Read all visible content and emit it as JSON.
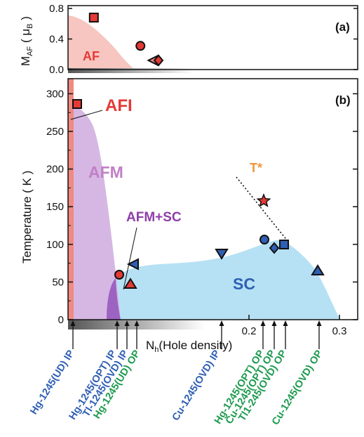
{
  "chart_data": [
    {
      "panel": "(a)",
      "type": "scatter",
      "ylabel": "M_AF (μB)",
      "ylim": [
        0,
        0.8
      ],
      "yticks": [
        0.0,
        0.4,
        0.8
      ],
      "regions": [
        {
          "label": "AF",
          "color": "#f08a82"
        }
      ],
      "points": [
        {
          "x": 0.02,
          "y": 0.68,
          "marker": "square"
        },
        {
          "x": 0.08,
          "y": 0.31,
          "marker": "circle"
        },
        {
          "x": 0.095,
          "y": 0.12,
          "marker": "triangle-left"
        },
        {
          "x": 0.1,
          "y": 0.12,
          "marker": "diamond"
        }
      ]
    },
    {
      "panel": "(b)",
      "type": "scatter",
      "xlabel": "Nh(Hole density)",
      "ylabel": "Temperature ( K )",
      "xlim": [
        0,
        0.32
      ],
      "ylim": [
        0,
        320
      ],
      "xticks": [
        "0.2",
        "0.3"
      ],
      "yticks": [
        0,
        50,
        100,
        150,
        200,
        250,
        300
      ],
      "regions": [
        {
          "label": "AFI",
          "color": "#f08a82"
        },
        {
          "label": "AFM",
          "color": "#caa6d9"
        },
        {
          "label": "AFM+SC",
          "color": "#8e50b8"
        },
        {
          "label": "SC",
          "color": "#a9dcf2"
        }
      ],
      "annotations": [
        "T*"
      ],
      "points": [
        {
          "x": 0.005,
          "y": 290,
          "marker": "square",
          "color": "#e53935"
        },
        {
          "x": 0.065,
          "y": 60,
          "marker": "circle",
          "color": "#e53935"
        },
        {
          "x": 0.085,
          "y": 73,
          "marker": "triangle-left",
          "color": "#2f5fb3"
        },
        {
          "x": 0.082,
          "y": 47,
          "marker": "triangle-up",
          "color": "#e53935"
        },
        {
          "x": 0.175,
          "y": 90,
          "marker": "triangle-down",
          "color": "#2f5fb3"
        },
        {
          "x": 0.222,
          "y": 108,
          "marker": "circle",
          "color": "#2f5fb3"
        },
        {
          "x": 0.232,
          "y": 97,
          "marker": "diamond",
          "color": "#2f5fb3"
        },
        {
          "x": 0.24,
          "y": 100,
          "marker": "square",
          "color": "#2f5fb3"
        },
        {
          "x": 0.287,
          "y": 65,
          "marker": "triangle-up",
          "color": "#2f5fb3"
        },
        {
          "x": 0.22,
          "y": 160,
          "marker": "star",
          "color": "#e53935"
        }
      ],
      "arrows": [
        {
          "x": 0.005,
          "label": "Hg-1245(UD) IP",
          "color": "#2f5fb3"
        },
        {
          "x": 0.065,
          "label": "Hg-1245(OPT) IP",
          "color": "#2f5fb3"
        },
        {
          "x": 0.077,
          "label": "Tl-1245(OVD) IP",
          "color": "#2f5fb3"
        },
        {
          "x": 0.091,
          "label": "Hg-1245(UD) OP",
          "color": "#1d9a4f"
        },
        {
          "x": 0.175,
          "label": "Cu-1245(OVD) IP",
          "color": "#2f5fb3"
        },
        {
          "x": 0.222,
          "label": "Hg-1245(OPT) OP",
          "color": "#1d9a4f"
        },
        {
          "x": 0.232,
          "label": "Cu-1245(OPT) OP",
          "color": "#1d9a4f"
        },
        {
          "x": 0.246,
          "label": "Tl1-245(OVD) OP",
          "color": "#1d9a4f"
        },
        {
          "x": 0.289,
          "label": "Cu-1245(OVD) OP",
          "color": "#1d9a4f"
        }
      ]
    }
  ],
  "labels": {
    "panel_a": "(a)",
    "panel_b": "(b)",
    "ylabel_a_main": "M",
    "ylabel_a_sub": "AF",
    "ylabel_a_open": " ( μ",
    "ylabel_a_sub2": "B",
    "ylabel_a_close": " )",
    "ylabel_b": "Temperature ( K )",
    "xlabel_main": "N",
    "xlabel_sub": "h",
    "xlabel_rest": "(Hole density)",
    "af": "AF",
    "afi": "AFI",
    "afm": "AFM",
    "afm_sc": "AFM+SC",
    "sc": "SC",
    "tstar": "T*"
  },
  "colors": {
    "af_fill": "#f7c6c0",
    "afi_fill": "#f08a82",
    "afm_fill": "#d6b7e3",
    "afmsc_fill": "#9d63c3",
    "sc_fill": "#b6e1f4",
    "red": "#e53935",
    "blue": "#2f5fb3",
    "green": "#1d9a4f",
    "purple": "#8e3ea8",
    "orange": "#f0963a",
    "afm_text": "#c17fc6"
  }
}
